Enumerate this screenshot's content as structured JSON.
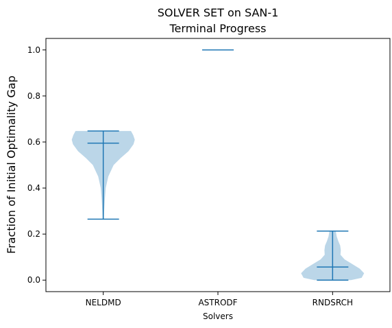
{
  "chart_data": {
    "type": "violin",
    "title": [
      "SOLVER SET on SAN-1",
      "Terminal Progress"
    ],
    "xlabel": "Solvers",
    "ylabel": "Fraction of Initial Optimality Gap",
    "categories": [
      "NELDMD",
      "ASTRODF",
      "RNDSRCH"
    ],
    "ylim": [
      -0.05,
      1.05
    ],
    "yticks": [
      "0.0",
      "0.2",
      "0.4",
      "0.6",
      "0.8",
      "1.0"
    ],
    "grid": false,
    "series": [
      {
        "category": "NELDMD",
        "min": 0.265,
        "max": 0.648,
        "median": 0.595,
        "density": [
          [
            0.265,
            0.02
          ],
          [
            0.3,
            0.03
          ],
          [
            0.35,
            0.05
          ],
          [
            0.4,
            0.08
          ],
          [
            0.45,
            0.16
          ],
          [
            0.5,
            0.33
          ],
          [
            0.53,
            0.55
          ],
          [
            0.56,
            0.8
          ],
          [
            0.59,
            0.96
          ],
          [
            0.61,
            1.0
          ],
          [
            0.63,
            0.95
          ],
          [
            0.648,
            0.88
          ]
        ]
      },
      {
        "category": "ASTRODF",
        "min": 1.0,
        "max": 1.0,
        "median": 1.0,
        "density": []
      },
      {
        "category": "RNDSRCH",
        "min": 0.0,
        "max": 0.213,
        "median": 0.057,
        "density": [
          [
            0.0,
            0.58
          ],
          [
            0.01,
            0.92
          ],
          [
            0.03,
            1.0
          ],
          [
            0.05,
            0.86
          ],
          [
            0.07,
            0.62
          ],
          [
            0.09,
            0.38
          ],
          [
            0.11,
            0.25
          ],
          [
            0.13,
            0.26
          ],
          [
            0.15,
            0.24
          ],
          [
            0.17,
            0.18
          ],
          [
            0.19,
            0.13
          ],
          [
            0.213,
            0.1
          ]
        ]
      }
    ],
    "colors": {
      "body": "#1f77b4",
      "line": "#1f77b4"
    }
  }
}
